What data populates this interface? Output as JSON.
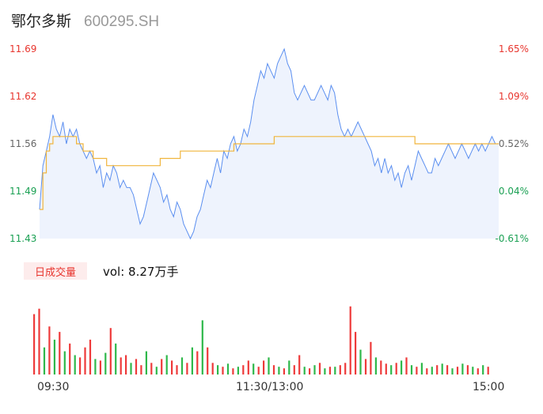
{
  "header": {
    "name": "鄂尔多斯",
    "code": "600295.SH"
  },
  "price_axis": [
    "11.69",
    "11.62",
    "11.56",
    "11.49",
    "11.43"
  ],
  "pct_axis": [
    "1.65%",
    "1.09%",
    "0.52%",
    "-0.04%",
    "-0.61%"
  ],
  "volume": {
    "badge": "日成交量",
    "text": "vol: 8.27万手"
  },
  "time_axis": [
    "09:30",
    "11:30/13:00",
    "15:00"
  ],
  "colors": {
    "up": "#e8352e",
    "down": "#1aa053",
    "neutral": "#666666",
    "price_line": "#5b8ff0",
    "avg_line": "#f0b53c",
    "area": "#eef3fd",
    "vol_up": "#ee3a3a",
    "vol_down": "#2eb84a"
  },
  "chart_data": {
    "type": "line",
    "ylim": [
      11.43,
      11.69
    ],
    "y_pct_range": [
      -0.61,
      1.65
    ],
    "xlabel": "",
    "ylabel": "",
    "series": [
      {
        "values": [
          11.47,
          11.53,
          11.55,
          11.57,
          11.6,
          11.58,
          11.57,
          11.59,
          11.56,
          11.58,
          11.57,
          11.58,
          11.56,
          11.55,
          11.54,
          11.55,
          11.54,
          11.52,
          11.53,
          11.5,
          11.52,
          11.51,
          11.53,
          11.52,
          11.5,
          11.51,
          11.5,
          11.5,
          11.49,
          11.47,
          11.45,
          11.46,
          11.48,
          11.5,
          11.52,
          11.51,
          11.5,
          11.48,
          11.49,
          11.47,
          11.46,
          11.48,
          11.47,
          11.45,
          11.44,
          11.43,
          11.44,
          11.46,
          11.47,
          11.49,
          11.51,
          11.5,
          11.52,
          11.54,
          11.52,
          11.55,
          11.54,
          11.56,
          11.57,
          11.55,
          11.56,
          11.58,
          11.57,
          11.59,
          11.62,
          11.64,
          11.66,
          11.65,
          11.67,
          11.66,
          11.65,
          11.67,
          11.68,
          11.69,
          11.67,
          11.66,
          11.63,
          11.62,
          11.63,
          11.64,
          11.63,
          11.62,
          11.62,
          11.63,
          11.64,
          11.63,
          11.62,
          11.64,
          11.63,
          11.6,
          11.58,
          11.57,
          11.58,
          11.57,
          11.58,
          11.59,
          11.58,
          11.57,
          11.56,
          11.55,
          11.53,
          11.54,
          11.52,
          11.54,
          11.52,
          11.53,
          11.51,
          11.52,
          11.5,
          11.52,
          11.53,
          11.51,
          11.53,
          11.55,
          11.54,
          11.53,
          11.52,
          11.52,
          11.54,
          11.53,
          11.54,
          11.55,
          11.56,
          11.55,
          11.54,
          11.55,
          11.56,
          11.55,
          11.54,
          11.55,
          11.56,
          11.55,
          11.56,
          11.55,
          11.56,
          11.57,
          11.56,
          11.56
        ],
        "avg": [
          11.47,
          11.52,
          11.55,
          11.56,
          11.57,
          11.57,
          11.57,
          11.57,
          11.57,
          11.57,
          11.57,
          11.56,
          11.56,
          11.55,
          11.55,
          11.55,
          11.54,
          11.54,
          11.54,
          11.54,
          11.53,
          11.53,
          11.53,
          11.53,
          11.53,
          11.53,
          11.53,
          11.53,
          11.53,
          11.53,
          11.53,
          11.53,
          11.53,
          11.53,
          11.53,
          11.53,
          11.54,
          11.54,
          11.54,
          11.54,
          11.54,
          11.54,
          11.55,
          11.55,
          11.55,
          11.55,
          11.55,
          11.55,
          11.55,
          11.55,
          11.55,
          11.55,
          11.55,
          11.55,
          11.55,
          11.55,
          11.55,
          11.55,
          11.56,
          11.56,
          11.56,
          11.56,
          11.56,
          11.56,
          11.56,
          11.56,
          11.56,
          11.56,
          11.56,
          11.56,
          11.57,
          11.57,
          11.57,
          11.57,
          11.57,
          11.57,
          11.57,
          11.57,
          11.57,
          11.57,
          11.57,
          11.57,
          11.57,
          11.57,
          11.57,
          11.57,
          11.57,
          11.57,
          11.57,
          11.57,
          11.57,
          11.57,
          11.57,
          11.57,
          11.57,
          11.57,
          11.57,
          11.57,
          11.57,
          11.57,
          11.57,
          11.57,
          11.57,
          11.57,
          11.57,
          11.57,
          11.57,
          11.57,
          11.57,
          11.57,
          11.57,
          11.57,
          11.56,
          11.56,
          11.56,
          11.56,
          11.56,
          11.56,
          11.56,
          11.56,
          11.56,
          11.56,
          11.56,
          11.56,
          11.56,
          11.56,
          11.56,
          11.56,
          11.56,
          11.56,
          11.56,
          11.56,
          11.56,
          11.56,
          11.56,
          11.56,
          11.56,
          11.56
        ]
      }
    ],
    "volume_bars": [
      {
        "v": 0.78,
        "up": true
      },
      {
        "v": 0.85,
        "up": true
      },
      {
        "v": 0.35,
        "up": false
      },
      {
        "v": 0.62,
        "up": true
      },
      {
        "v": 0.45,
        "up": false
      },
      {
        "v": 0.55,
        "up": true
      },
      {
        "v": 0.3,
        "up": false
      },
      {
        "v": 0.4,
        "up": true
      },
      {
        "v": 0.25,
        "up": false
      },
      {
        "v": 0.22,
        "up": true
      },
      {
        "v": 0.35,
        "up": true
      },
      {
        "v": 0.45,
        "up": true
      },
      {
        "v": 0.2,
        "up": false
      },
      {
        "v": 0.18,
        "up": true
      },
      {
        "v": 0.28,
        "up": false
      },
      {
        "v": 0.6,
        "up": true
      },
      {
        "v": 0.4,
        "up": false
      },
      {
        "v": 0.22,
        "up": true
      },
      {
        "v": 0.25,
        "up": true
      },
      {
        "v": 0.15,
        "up": false
      },
      {
        "v": 0.2,
        "up": true
      },
      {
        "v": 0.12,
        "up": true
      },
      {
        "v": 0.3,
        "up": false
      },
      {
        "v": 0.15,
        "up": true
      },
      {
        "v": 0.1,
        "up": false
      },
      {
        "v": 0.2,
        "up": true
      },
      {
        "v": 0.25,
        "up": false
      },
      {
        "v": 0.18,
        "up": true
      },
      {
        "v": 0.12,
        "up": true
      },
      {
        "v": 0.22,
        "up": false
      },
      {
        "v": 0.15,
        "up": true
      },
      {
        "v": 0.35,
        "up": false
      },
      {
        "v": 0.3,
        "up": true
      },
      {
        "v": 0.7,
        "up": false
      },
      {
        "v": 0.35,
        "up": true
      },
      {
        "v": 0.15,
        "up": true
      },
      {
        "v": 0.12,
        "up": false
      },
      {
        "v": 0.1,
        "up": true
      },
      {
        "v": 0.14,
        "up": false
      },
      {
        "v": 0.08,
        "up": true
      },
      {
        "v": 0.1,
        "up": false
      },
      {
        "v": 0.12,
        "up": true
      },
      {
        "v": 0.18,
        "up": true
      },
      {
        "v": 0.14,
        "up": false
      },
      {
        "v": 0.1,
        "up": true
      },
      {
        "v": 0.18,
        "up": true
      },
      {
        "v": 0.22,
        "up": false
      },
      {
        "v": 0.12,
        "up": true
      },
      {
        "v": 0.1,
        "up": false
      },
      {
        "v": 0.08,
        "up": true
      },
      {
        "v": 0.18,
        "up": false
      },
      {
        "v": 0.12,
        "up": true
      },
      {
        "v": 0.25,
        "up": true
      },
      {
        "v": 0.1,
        "up": false
      },
      {
        "v": 0.08,
        "up": true
      },
      {
        "v": 0.12,
        "up": false
      },
      {
        "v": 0.15,
        "up": true
      },
      {
        "v": 0.08,
        "up": false
      },
      {
        "v": 0.1,
        "up": true
      },
      {
        "v": 0.1,
        "up": false
      },
      {
        "v": 0.12,
        "up": true
      },
      {
        "v": 0.15,
        "up": true
      },
      {
        "v": 0.88,
        "up": true
      },
      {
        "v": 0.55,
        "up": true
      },
      {
        "v": 0.32,
        "up": false
      },
      {
        "v": 0.2,
        "up": true
      },
      {
        "v": 0.42,
        "up": true
      },
      {
        "v": 0.22,
        "up": false
      },
      {
        "v": 0.18,
        "up": true
      },
      {
        "v": 0.14,
        "up": true
      },
      {
        "v": 0.12,
        "up": false
      },
      {
        "v": 0.15,
        "up": true
      },
      {
        "v": 0.18,
        "up": false
      },
      {
        "v": 0.22,
        "up": true
      },
      {
        "v": 0.12,
        "up": false
      },
      {
        "v": 0.1,
        "up": true
      },
      {
        "v": 0.15,
        "up": false
      },
      {
        "v": 0.08,
        "up": true
      },
      {
        "v": 0.1,
        "up": false
      },
      {
        "v": 0.12,
        "up": true
      },
      {
        "v": 0.14,
        "up": false
      },
      {
        "v": 0.12,
        "up": true
      },
      {
        "v": 0.08,
        "up": false
      },
      {
        "v": 0.1,
        "up": true
      },
      {
        "v": 0.14,
        "up": false
      },
      {
        "v": 0.12,
        "up": true
      },
      {
        "v": 0.1,
        "up": false
      },
      {
        "v": 0.08,
        "up": true
      },
      {
        "v": 0.12,
        "up": false
      },
      {
        "v": 0.1,
        "up": true
      }
    ]
  }
}
